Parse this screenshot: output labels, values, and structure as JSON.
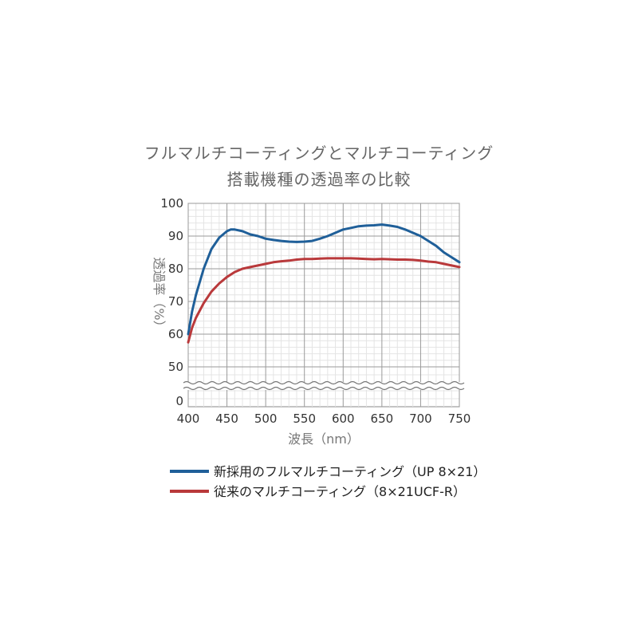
{
  "chart_data": {
    "type": "line",
    "title": "フルマルチコーティングとマルチコーティング",
    "subtitle": "搭載機種の透過率の比較",
    "xlabel": "波長（nm）",
    "ylabel": "透過率（%）",
    "xlim": [
      400,
      750
    ],
    "ylim": [
      50,
      100
    ],
    "x_ticks": [
      "400",
      "450",
      "500",
      "550",
      "600",
      "650",
      "700",
      "750"
    ],
    "y_ticks": [
      "100",
      "90",
      "80",
      "70",
      "60",
      "50"
    ],
    "y_break_zero_label": "0",
    "axis_break": true,
    "grid": true,
    "legend_position": "bottom",
    "series": [
      {
        "name": "新採用のフルマルチコーティング（UP 8×21）",
        "color": "#1f5f99",
        "x": [
          400,
          405,
          410,
          420,
          430,
          440,
          450,
          455,
          460,
          470,
          480,
          490,
          500,
          510,
          520,
          530,
          540,
          550,
          560,
          570,
          580,
          590,
          600,
          610,
          620,
          630,
          640,
          650,
          660,
          670,
          680,
          690,
          700,
          710,
          720,
          730,
          740,
          750
        ],
        "y": [
          60,
          67,
          72,
          80,
          86,
          89.5,
          91.5,
          92,
          92,
          91.5,
          90.5,
          90,
          89.2,
          88.8,
          88.5,
          88.3,
          88.2,
          88.3,
          88.5,
          89.2,
          90,
          91,
          92,
          92.5,
          93,
          93.2,
          93.3,
          93.5,
          93.2,
          92.8,
          92,
          91,
          90,
          88.5,
          87,
          85,
          83.5,
          82
        ]
      },
      {
        "name": "従来のマルチコーティング（8×21UCF-R）",
        "color": "#b9393b",
        "x": [
          400,
          405,
          410,
          420,
          430,
          440,
          450,
          460,
          470,
          480,
          490,
          500,
          510,
          520,
          530,
          540,
          550,
          560,
          570,
          580,
          590,
          600,
          610,
          620,
          630,
          640,
          650,
          660,
          670,
          680,
          690,
          700,
          710,
          720,
          730,
          740,
          750
        ],
        "y": [
          57.5,
          62,
          65,
          69.5,
          73,
          75.5,
          77.5,
          79,
          80,
          80.5,
          81,
          81.5,
          82,
          82.3,
          82.5,
          82.8,
          83,
          83,
          83.1,
          83.2,
          83.2,
          83.2,
          83.2,
          83.1,
          83,
          82.9,
          83,
          82.9,
          82.8,
          82.8,
          82.7,
          82.5,
          82.2,
          82,
          81.5,
          81,
          80.5
        ]
      }
    ]
  }
}
